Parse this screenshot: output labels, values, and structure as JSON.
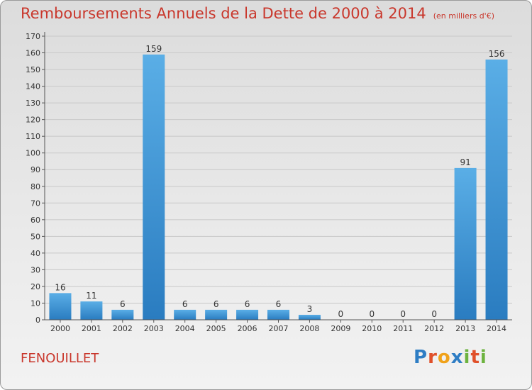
{
  "title": "Remboursements Annuels de la Dette de 2000 à 2014",
  "subtitle": "(en milliers d'€)",
  "place": "FENOUILLET",
  "logo": {
    "letters": [
      "P",
      "r",
      "o",
      "x",
      "i",
      "t",
      "i"
    ],
    "colors": [
      "#2e7dc4",
      "#e0502a",
      "#f0a21a",
      "#2e7dc4",
      "#6db33f",
      "#e0502a",
      "#6db33f"
    ]
  },
  "colors": {
    "title": "#c9372c",
    "bar_top": "#5aaee6",
    "bar_bottom": "#2a7cc0"
  },
  "chart_data": {
    "type": "bar",
    "title": "Remboursements Annuels de la Dette de 2000 à 2014",
    "categories": [
      "2000",
      "2001",
      "2002",
      "2003",
      "2004",
      "2005",
      "2006",
      "2007",
      "2008",
      "2009",
      "2010",
      "2011",
      "2012",
      "2013",
      "2014"
    ],
    "values": [
      16,
      11,
      6,
      159,
      6,
      6,
      6,
      6,
      3,
      0,
      0,
      0,
      0,
      91,
      156
    ],
    "value_labels": [
      "16",
      "11",
      "6",
      "159",
      "6",
      "6",
      "6",
      "6",
      "3",
      "0",
      "0",
      "0",
      "0",
      "91",
      "156"
    ],
    "ylim": [
      0,
      170
    ],
    "yticks": [
      0,
      10,
      20,
      30,
      40,
      50,
      60,
      70,
      80,
      90,
      100,
      110,
      120,
      130,
      140,
      150,
      160,
      170
    ],
    "grid": true
  }
}
